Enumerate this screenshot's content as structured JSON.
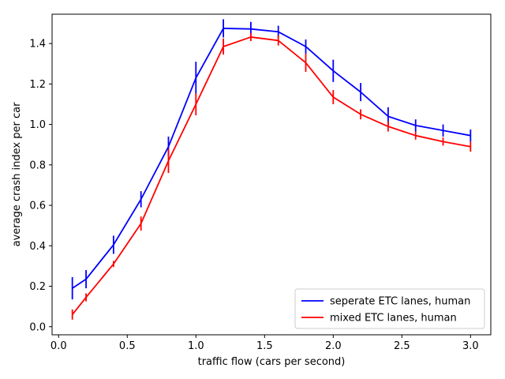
{
  "chart_data": {
    "type": "line",
    "title": "",
    "xlabel": "traffic flow (cars per second)",
    "ylabel": "average crash index per car",
    "xlim": [
      -0.0475,
      3.1475
    ],
    "ylim": [
      -0.04,
      1.545
    ],
    "xticks": [
      0.0,
      0.5,
      1.0,
      1.5,
      2.0,
      2.5,
      3.0
    ],
    "xtick_labels": [
      "0.0",
      "0.5",
      "1.0",
      "1.5",
      "2.0",
      "2.5",
      "3.0"
    ],
    "yticks": [
      0.0,
      0.2,
      0.4,
      0.6,
      0.8,
      1.0,
      1.2,
      1.4
    ],
    "ytick_labels": [
      "0.0",
      "0.2",
      "0.4",
      "0.6",
      "0.8",
      "1.0",
      "1.2",
      "1.4"
    ],
    "grid": false,
    "legend_position": "lower-right",
    "x": [
      0.1,
      0.2,
      0.4,
      0.6,
      0.8,
      1.0,
      1.2,
      1.4,
      1.6,
      1.8,
      2.0,
      2.2,
      2.4,
      2.6,
      2.8,
      3.0
    ],
    "series": [
      {
        "name": "seperate ETC lanes, human",
        "color": "#0000ff",
        "values": [
          0.19,
          0.235,
          0.405,
          0.63,
          0.89,
          1.23,
          1.475,
          1.472,
          1.458,
          1.385,
          1.265,
          1.16,
          1.04,
          0.995,
          0.97,
          0.945
        ],
        "errors": [
          0.055,
          0.045,
          0.045,
          0.04,
          0.05,
          0.08,
          0.045,
          0.035,
          0.03,
          0.035,
          0.055,
          0.045,
          0.045,
          0.03,
          0.03,
          0.03
        ]
      },
      {
        "name": "mixed ETC lanes, human",
        "color": "#ff0000",
        "values": [
          0.06,
          0.145,
          0.31,
          0.51,
          0.82,
          1.1,
          1.385,
          1.432,
          1.415,
          1.305,
          1.135,
          1.05,
          0.99,
          0.945,
          0.915,
          0.89
        ],
        "errors": [
          0.025,
          0.02,
          0.015,
          0.035,
          0.06,
          0.055,
          0.04,
          0.02,
          0.025,
          0.045,
          0.035,
          0.025,
          0.025,
          0.02,
          0.02,
          0.025
        ]
      }
    ]
  }
}
